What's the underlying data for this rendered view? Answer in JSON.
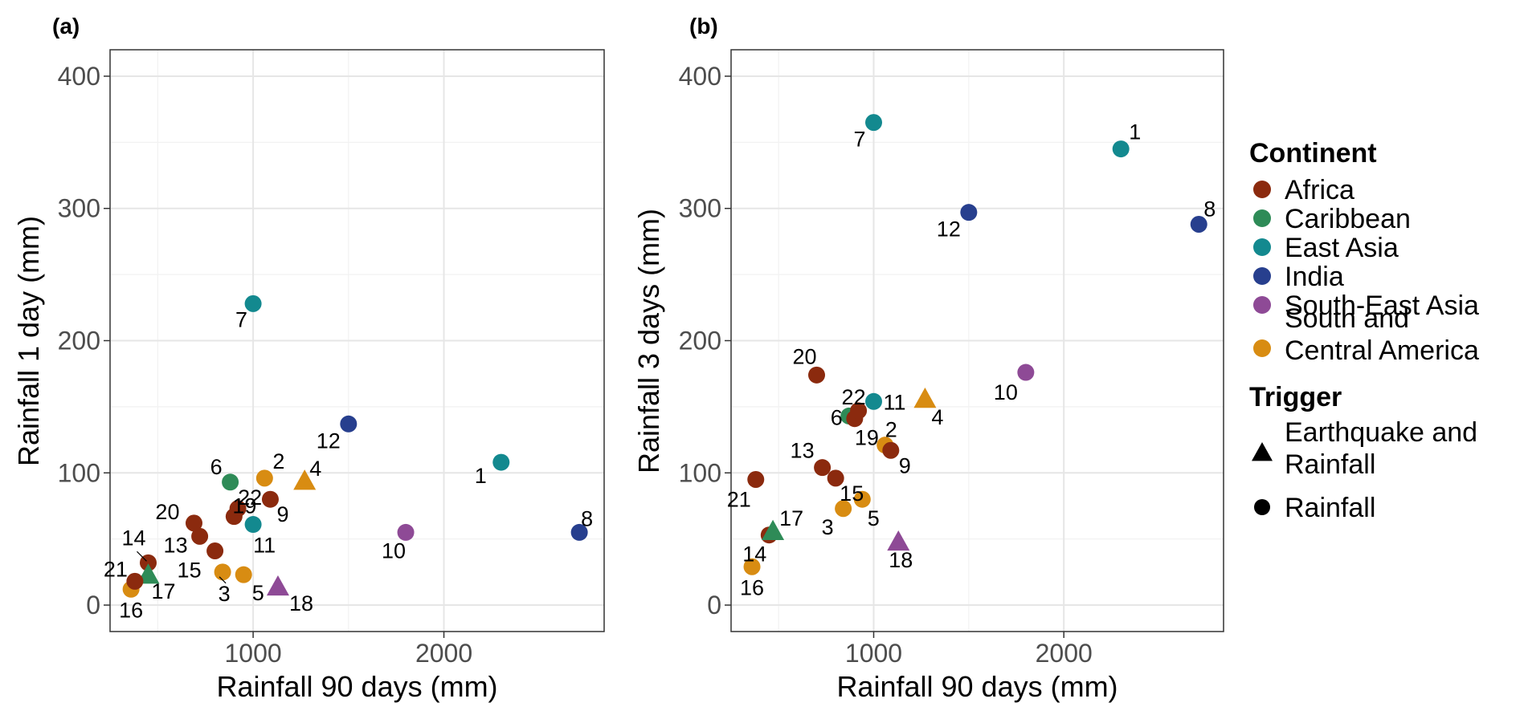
{
  "chart_data": [
    {
      "type": "scatter",
      "panel": "(a)",
      "xlabel": "Rainfall 90 days (mm)",
      "ylabel": "Rainfall 1 day (mm)",
      "xlim": [
        250,
        2840
      ],
      "ylim": [
        -20,
        420
      ],
      "xticks": [
        1000,
        2000
      ],
      "yticks": [
        0,
        100,
        200,
        300,
        400
      ],
      "grid": true,
      "points": [
        {
          "label": "1",
          "x": 2300,
          "y": 108,
          "continent": "East Asia",
          "trigger": "Rainfall"
        },
        {
          "label": "2",
          "x": 1060,
          "y": 96,
          "continent": "South and Central America",
          "trigger": "Rainfall"
        },
        {
          "label": "3",
          "x": 840,
          "y": 25,
          "continent": "South and Central America",
          "trigger": "Rainfall"
        },
        {
          "label": "4",
          "x": 1270,
          "y": 94,
          "continent": "South and Central America",
          "trigger": "Earthquake and Rainfall"
        },
        {
          "label": "5",
          "x": 950,
          "y": 23,
          "continent": "South and Central America",
          "trigger": "Rainfall"
        },
        {
          "label": "6",
          "x": 880,
          "y": 93,
          "continent": "Caribbean",
          "trigger": "Rainfall"
        },
        {
          "label": "7",
          "x": 1000,
          "y": 228,
          "continent": "East Asia",
          "trigger": "Rainfall"
        },
        {
          "label": "8",
          "x": 2710,
          "y": 55,
          "continent": "India",
          "trigger": "Rainfall"
        },
        {
          "label": "9",
          "x": 1090,
          "y": 80,
          "continent": "Africa",
          "trigger": "Rainfall"
        },
        {
          "label": "10",
          "x": 1800,
          "y": 55,
          "continent": "South-East Asia",
          "trigger": "Rainfall"
        },
        {
          "label": "11",
          "x": 1000,
          "y": 61,
          "continent": "East Asia",
          "trigger": "Rainfall"
        },
        {
          "label": "12",
          "x": 1500,
          "y": 137,
          "continent": "India",
          "trigger": "Rainfall"
        },
        {
          "label": "13",
          "x": 720,
          "y": 52,
          "continent": "Africa",
          "trigger": "Rainfall"
        },
        {
          "label": "14",
          "x": 450,
          "y": 32,
          "continent": "Africa",
          "trigger": "Rainfall"
        },
        {
          "label": "15",
          "x": 800,
          "y": 41,
          "continent": "Africa",
          "trigger": "Rainfall"
        },
        {
          "label": "16",
          "x": 360,
          "y": 12,
          "continent": "South and Central America",
          "trigger": "Rainfall"
        },
        {
          "label": "17",
          "x": 450,
          "y": 23,
          "continent": "Caribbean",
          "trigger": "Earthquake and Rainfall"
        },
        {
          "label": "18",
          "x": 1130,
          "y": 14,
          "continent": "South-East Asia",
          "trigger": "Earthquake and Rainfall"
        },
        {
          "label": "19",
          "x": 900,
          "y": 67,
          "continent": "Africa",
          "trigger": "Rainfall"
        },
        {
          "label": "20",
          "x": 690,
          "y": 62,
          "continent": "Africa",
          "trigger": "Rainfall"
        },
        {
          "label": "21",
          "x": 380,
          "y": 18,
          "continent": "Africa",
          "trigger": "Rainfall"
        },
        {
          "label": "22",
          "x": 920,
          "y": 73,
          "continent": "Africa",
          "trigger": "Rainfall"
        }
      ]
    },
    {
      "type": "scatter",
      "panel": "(b)",
      "xlabel": "Rainfall 90 days (mm)",
      "ylabel": "Rainfall 3 days (mm)",
      "xlim": [
        250,
        2840
      ],
      "ylim": [
        -20,
        420
      ],
      "xticks": [
        1000,
        2000
      ],
      "yticks": [
        0,
        100,
        200,
        300,
        400
      ],
      "grid": true,
      "points": [
        {
          "label": "1",
          "x": 2300,
          "y": 345,
          "continent": "East Asia",
          "trigger": "Rainfall"
        },
        {
          "label": "2",
          "x": 1060,
          "y": 121,
          "continent": "South and Central America",
          "trigger": "Rainfall"
        },
        {
          "label": "3",
          "x": 840,
          "y": 73,
          "continent": "South and Central America",
          "trigger": "Rainfall"
        },
        {
          "label": "4",
          "x": 1270,
          "y": 156,
          "continent": "South and Central America",
          "trigger": "Earthquake and Rainfall"
        },
        {
          "label": "5",
          "x": 940,
          "y": 80,
          "continent": "South and Central America",
          "trigger": "Rainfall"
        },
        {
          "label": "6",
          "x": 870,
          "y": 143,
          "continent": "Caribbean",
          "trigger": "Rainfall"
        },
        {
          "label": "7",
          "x": 1000,
          "y": 365,
          "continent": "East Asia",
          "trigger": "Rainfall"
        },
        {
          "label": "8",
          "x": 2710,
          "y": 288,
          "continent": "India",
          "trigger": "Rainfall"
        },
        {
          "label": "9",
          "x": 1090,
          "y": 117,
          "continent": "Africa",
          "trigger": "Rainfall"
        },
        {
          "label": "10",
          "x": 1800,
          "y": 176,
          "continent": "South-East Asia",
          "trigger": "Rainfall"
        },
        {
          "label": "11",
          "x": 1000,
          "y": 154,
          "continent": "East Asia",
          "trigger": "Rainfall"
        },
        {
          "label": "12",
          "x": 1500,
          "y": 297,
          "continent": "India",
          "trigger": "Rainfall"
        },
        {
          "label": "13",
          "x": 730,
          "y": 104,
          "continent": "Africa",
          "trigger": "Rainfall"
        },
        {
          "label": "14",
          "x": 450,
          "y": 53,
          "continent": "Africa",
          "trigger": "Rainfall"
        },
        {
          "label": "15",
          "x": 800,
          "y": 96,
          "continent": "Africa",
          "trigger": "Rainfall"
        },
        {
          "label": "16",
          "x": 360,
          "y": 29,
          "continent": "South and Central America",
          "trigger": "Rainfall"
        },
        {
          "label": "17",
          "x": 470,
          "y": 56,
          "continent": "Caribbean",
          "trigger": "Earthquake and Rainfall"
        },
        {
          "label": "18",
          "x": 1130,
          "y": 48,
          "continent": "South-East Asia",
          "trigger": "Earthquake and Rainfall"
        },
        {
          "label": "19",
          "x": 900,
          "y": 141,
          "continent": "Africa",
          "trigger": "Rainfall"
        },
        {
          "label": "20",
          "x": 700,
          "y": 174,
          "continent": "Africa",
          "trigger": "Rainfall"
        },
        {
          "label": "21",
          "x": 380,
          "y": 95,
          "continent": "Africa",
          "trigger": "Rainfall"
        },
        {
          "label": "22",
          "x": 920,
          "y": 147,
          "continent": "Africa",
          "trigger": "Rainfall"
        }
      ]
    }
  ],
  "legend": {
    "placement": "right",
    "continent_title": "Continent",
    "continents": [
      {
        "name": "Africa",
        "color": "#8B2A0E"
      },
      {
        "name": "Caribbean",
        "color": "#2E8B57"
      },
      {
        "name": "East Asia",
        "color": "#13898F"
      },
      {
        "name": "India",
        "color": "#273F8E"
      },
      {
        "name": "South-East Asia",
        "color": "#8E4A96"
      },
      {
        "name": "South and Central America",
        "lines": [
          "South and",
          "Central America"
        ],
        "color": "#D88C12"
      }
    ],
    "trigger_title": "Trigger",
    "triggers": [
      {
        "name": "Earthquake and Rainfall",
        "lines": [
          "Earthquake and",
          "Rainfall"
        ],
        "shape": "triangle"
      },
      {
        "name": "Rainfall",
        "shape": "circle"
      }
    ]
  }
}
